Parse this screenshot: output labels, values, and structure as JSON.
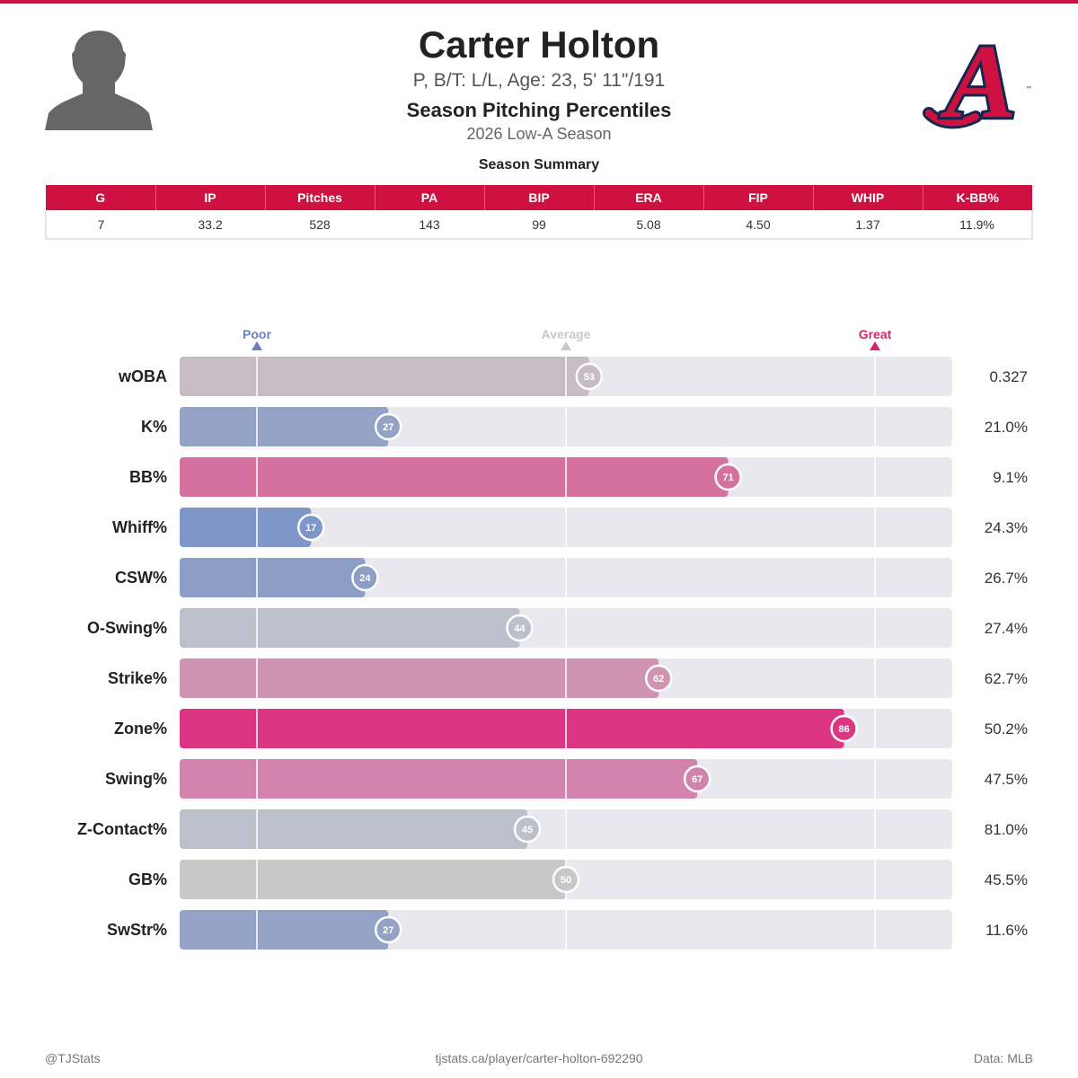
{
  "header": {
    "player_name": "Carter Holton",
    "player_info": "P, B/T: L/L, Age: 23, 5' 11\"/191",
    "subtitle": "Season Pitching Percentiles",
    "season": "2026 Low-A Season",
    "headshot_icon": "player-silhouette-icon",
    "team_logo_icon": "braves-a-logo-icon",
    "team_logo_text": "A"
  },
  "summary": {
    "title": "Season Summary",
    "columns": [
      "G",
      "IP",
      "Pitches",
      "PA",
      "BIP",
      "ERA",
      "FIP",
      "WHIP",
      "K-BB%"
    ],
    "values": [
      "7",
      "33.2",
      "528",
      "143",
      "99",
      "5.08",
      "4.50",
      "1.37",
      "11.9%"
    ]
  },
  "chart_data": {
    "type": "bar",
    "orientation": "horizontal",
    "xlim": [
      0,
      100
    ],
    "markers": [
      {
        "label": "Poor",
        "percentile": 10,
        "color": "#6b7fbf"
      },
      {
        "label": "Average",
        "percentile": 50,
        "color": "#c8c8cc"
      },
      {
        "label": "Great",
        "percentile": 90,
        "color": "#d0266f"
      }
    ],
    "categories": [
      "wOBA",
      "K%",
      "BB%",
      "Whiff%",
      "CSW%",
      "O-Swing%",
      "Strike%",
      "Zone%",
      "Swing%",
      "Z-Contact%",
      "GB%",
      "SwStr%"
    ],
    "percentiles": [
      53,
      27,
      71,
      17,
      24,
      44,
      62,
      86,
      67,
      45,
      50,
      27
    ],
    "stat_values": [
      "0.327",
      "21.0%",
      "9.1%",
      "24.3%",
      "26.7%",
      "27.4%",
      "62.7%",
      "50.2%",
      "47.5%",
      "81.0%",
      "45.5%",
      "11.6%"
    ],
    "bar_colors": [
      "#c8bcc4",
      "#94a3c5",
      "#d4719e",
      "#7f96c8",
      "#8c9dc6",
      "#bcc0ca",
      "#cf94b2",
      "#db3584",
      "#d283ad",
      "#bcc0ca",
      "#c8c8c8",
      "#94a3c5"
    ],
    "track_color": "#e8e8ee"
  },
  "footer": {
    "credit": "@TJStats",
    "url": "tjstats.ca/player/carter-holton-692290",
    "source": "Data: MLB"
  }
}
